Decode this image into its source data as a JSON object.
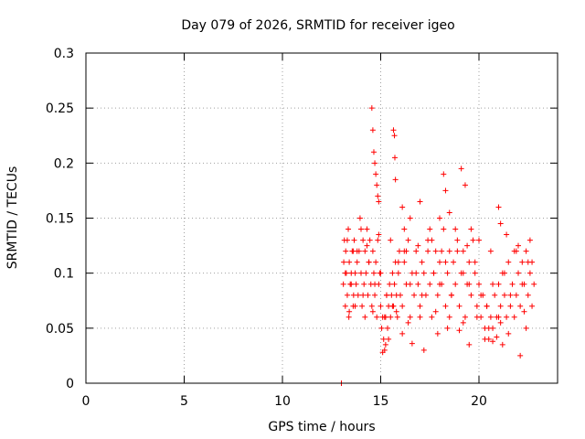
{
  "chart_data": {
    "type": "scatter",
    "title": "Day 079 of 2026, SRMTID for receiver igeo",
    "xlabel": "GPS time / hours",
    "ylabel": "SRMTID / TECUs",
    "xlim": [
      0,
      24
    ],
    "ylim": [
      0,
      0.3
    ],
    "grid": true,
    "x_ticks": [
      0,
      5,
      10,
      15,
      20
    ],
    "x_tick_labels": [
      "0",
      "5",
      "10",
      "15",
      "20"
    ],
    "y_ticks": [
      0,
      0.05,
      0.1,
      0.15,
      0.2,
      0.25,
      0.3
    ],
    "y_tick_labels": [
      "0",
      "0.05",
      "0.1",
      "0.15",
      "0.2",
      "0.25",
      "0.3"
    ],
    "marker": "plus",
    "color": "#ff0000",
    "series": [
      {
        "name": "SRMTID",
        "x": [
          13.0,
          13.1,
          13.12,
          13.15,
          13.2,
          13.22,
          13.25,
          13.3,
          13.35,
          13.38,
          13.4,
          13.45,
          13.5,
          13.55,
          13.6,
          13.62,
          13.65,
          13.7,
          13.75,
          13.8,
          13.85,
          13.9,
          13.95,
          14.0,
          14.05,
          14.1,
          14.15,
          14.2,
          14.25,
          14.3,
          14.35,
          14.4,
          14.45,
          14.5,
          14.55,
          14.6,
          14.65,
          14.7,
          14.75,
          14.8,
          14.85,
          14.9,
          14.95,
          15.0,
          15.05,
          15.1,
          15.15,
          15.2,
          15.25,
          15.3,
          15.35,
          15.4,
          15.45,
          15.5,
          15.55,
          15.6,
          15.65,
          15.7,
          15.75,
          15.8,
          15.85,
          15.9,
          15.95,
          16.0,
          16.1,
          16.2,
          16.3,
          16.4,
          16.5,
          16.6,
          16.7,
          16.8,
          16.9,
          17.0,
          17.1,
          17.2,
          17.3,
          17.4,
          17.5,
          17.6,
          17.7,
          17.8,
          17.9,
          18.0,
          18.1,
          18.2,
          18.3,
          18.4,
          18.5,
          18.6,
          18.7,
          18.8,
          18.9,
          19.0,
          19.1,
          19.2,
          19.3,
          19.4,
          19.5,
          19.6,
          19.7,
          19.8,
          19.9,
          20.0,
          20.1,
          20.2,
          20.3,
          20.4,
          20.5,
          20.6,
          20.7,
          20.8,
          20.9,
          21.0,
          21.1,
          21.2,
          21.3,
          21.4,
          21.5,
          21.6,
          21.7,
          21.8,
          21.9,
          22.0,
          22.1,
          22.2,
          22.3,
          22.4,
          22.5,
          22.6,
          22.7,
          22.8,
          14.55,
          14.6,
          14.65,
          14.7,
          14.75,
          14.8,
          14.85,
          14.9,
          15.65,
          15.7,
          15.72,
          15.75,
          16.1,
          16.2,
          16.5,
          17.0,
          17.5,
          18.0,
          18.2,
          18.3,
          18.5,
          19.1,
          19.3,
          19.6,
          21.0,
          21.1,
          13.2,
          13.5,
          13.8,
          14.1,
          14.4,
          14.7,
          15.0,
          15.3,
          15.6,
          15.9,
          16.2,
          16.5,
          16.8,
          17.1,
          17.4,
          17.7,
          18.0,
          18.3,
          18.6,
          18.9,
          19.2,
          19.5,
          19.8,
          20.1,
          20.4,
          20.7,
          21.0,
          21.3,
          21.6,
          21.9,
          22.2,
          22.5,
          15.1,
          15.25,
          15.4,
          16.1,
          16.6,
          17.2,
          17.9,
          18.4,
          19.0,
          19.5,
          20.3,
          20.7,
          20.9,
          21.2,
          21.5,
          22.1,
          22.4,
          13.3,
          13.6,
          14.0,
          14.3,
          14.9,
          15.5,
          16.3,
          16.9,
          17.6,
          18.1,
          18.8,
          19.4,
          20.0,
          20.6,
          21.4,
          22.0,
          22.6,
          13.4,
          13.7,
          14.2,
          14.6,
          15.2,
          15.8,
          16.4,
          17.0,
          17.8,
          18.5,
          19.2,
          19.9,
          20.5,
          21.1,
          21.8,
          22.3,
          22.7
        ],
        "y": [
          0.0,
          0.09,
          0.11,
          0.13,
          0.07,
          0.12,
          0.1,
          0.08,
          0.14,
          0.06,
          0.11,
          0.09,
          0.1,
          0.12,
          0.07,
          0.08,
          0.13,
          0.1,
          0.09,
          0.11,
          0.08,
          0.12,
          0.15,
          0.1,
          0.07,
          0.13,
          0.09,
          0.12,
          0.1,
          0.14,
          0.08,
          0.11,
          0.13,
          0.09,
          0.07,
          0.12,
          0.1,
          0.08,
          0.11,
          0.06,
          0.13,
          0.09,
          0.1,
          0.07,
          0.05,
          0.06,
          0.04,
          0.03,
          0.06,
          0.08,
          0.05,
          0.07,
          0.09,
          0.06,
          0.08,
          0.1,
          0.07,
          0.09,
          0.11,
          0.08,
          0.06,
          0.1,
          0.12,
          0.08,
          0.07,
          0.11,
          0.09,
          0.13,
          0.06,
          0.1,
          0.08,
          0.12,
          0.09,
          0.07,
          0.11,
          0.1,
          0.08,
          0.13,
          0.09,
          0.06,
          0.1,
          0.12,
          0.08,
          0.11,
          0.09,
          0.14,
          0.07,
          0.1,
          0.12,
          0.08,
          0.11,
          0.09,
          0.13,
          0.07,
          0.1,
          0.12,
          0.06,
          0.09,
          0.11,
          0.08,
          0.13,
          0.1,
          0.07,
          0.09,
          0.06,
          0.08,
          0.05,
          0.07,
          0.04,
          0.06,
          0.05,
          0.08,
          0.06,
          0.09,
          0.07,
          0.1,
          0.08,
          0.06,
          0.11,
          0.07,
          0.09,
          0.12,
          0.08,
          0.1,
          0.07,
          0.11,
          0.09,
          0.12,
          0.08,
          0.1,
          0.11,
          0.09,
          0.25,
          0.23,
          0.21,
          0.2,
          0.19,
          0.18,
          0.17,
          0.165,
          0.23,
          0.225,
          0.205,
          0.185,
          0.16,
          0.14,
          0.15,
          0.165,
          0.14,
          0.15,
          0.19,
          0.175,
          0.155,
          0.195,
          0.18,
          0.14,
          0.16,
          0.145,
          0.1,
          0.09,
          0.12,
          0.08,
          0.11,
          0.09,
          0.1,
          0.08,
          0.07,
          0.11,
          0.12,
          0.09,
          0.1,
          0.08,
          0.12,
          0.1,
          0.09,
          0.11,
          0.08,
          0.12,
          0.1,
          0.09,
          0.11,
          0.08,
          0.07,
          0.09,
          0.06,
          0.1,
          0.08,
          0.12,
          0.09,
          0.11,
          0.028,
          0.035,
          0.04,
          0.045,
          0.036,
          0.03,
          0.045,
          0.05,
          0.048,
          0.035,
          0.04,
          0.038,
          0.042,
          0.035,
          0.045,
          0.025,
          0.05,
          0.13,
          0.12,
          0.14,
          0.125,
          0.135,
          0.13,
          0.12,
          0.125,
          0.13,
          0.12,
          0.14,
          0.125,
          0.13,
          0.12,
          0.135,
          0.125,
          0.13,
          0.065,
          0.07,
          0.06,
          0.065,
          0.06,
          0.065,
          0.055,
          0.06,
          0.065,
          0.06,
          0.055,
          0.06,
          0.05,
          0.055,
          0.06,
          0.065,
          0.07
        ]
      }
    ]
  }
}
